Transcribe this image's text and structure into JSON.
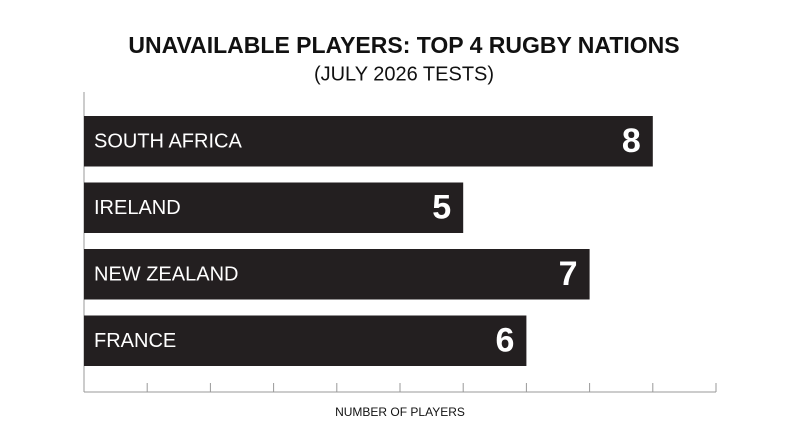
{
  "chart_data": {
    "type": "bar",
    "orientation": "horizontal",
    "title": "UNAVAILABLE PLAYERS: TOP 4 RUGBY NATIONS",
    "subtitle": "(JULY 2026 TESTS)",
    "x_label": "NUMBER OF PLAYERS",
    "categories": [
      "SOUTH AFRICA",
      "IRELAND",
      "NEW ZEALAND",
      "FRANCE"
    ],
    "values": [
      8,
      5,
      7,
      6
    ],
    "color": "#231f20",
    "xlim": [
      -1,
      9
    ],
    "xticks": [
      -1,
      0,
      1,
      2,
      3,
      4,
      5,
      6,
      7,
      8,
      9
    ]
  }
}
